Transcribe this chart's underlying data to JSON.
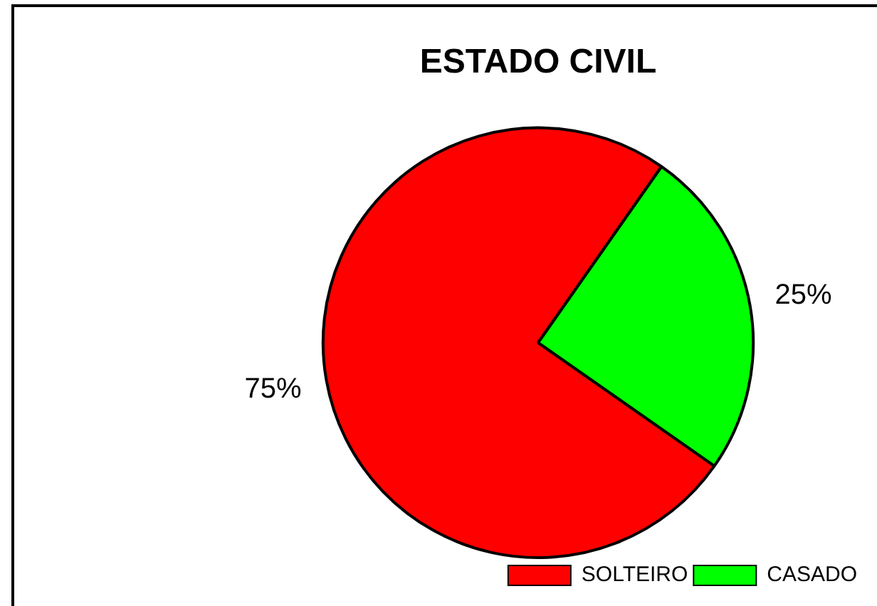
{
  "chart_data": {
    "type": "pie",
    "title": "ESTADO CIVIL",
    "categories": [
      "SOLTEIRO",
      "CASADO"
    ],
    "values": [
      75,
      25
    ],
    "colors": [
      "#ff0000",
      "#00ff00"
    ],
    "value_labels": [
      "75%",
      "25%"
    ],
    "legend": "bottom right"
  }
}
